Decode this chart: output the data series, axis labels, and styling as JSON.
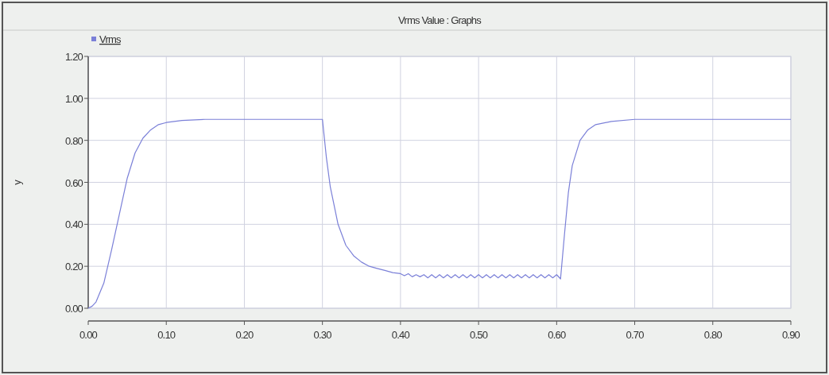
{
  "chart_data": {
    "type": "line",
    "title": "Vrms Value : Graphs",
    "ylabel": "y",
    "series": [
      {
        "name": "Vrms",
        "color": "#7b80d8",
        "x": [
          0,
          0.005,
          0.01,
          0.02,
          0.03,
          0.04,
          0.05,
          0.06,
          0.07,
          0.08,
          0.09,
          0.1,
          0.12,
          0.15,
          0.2,
          0.3,
          0.305,
          0.31,
          0.32,
          0.33,
          0.34,
          0.35,
          0.36,
          0.37,
          0.38,
          0.39,
          0.4,
          0.405,
          0.41,
          0.415,
          0.42,
          0.425,
          0.43,
          0.435,
          0.44,
          0.445,
          0.45,
          0.455,
          0.46,
          0.465,
          0.47,
          0.475,
          0.48,
          0.485,
          0.49,
          0.495,
          0.5,
          0.505,
          0.51,
          0.515,
          0.52,
          0.525,
          0.53,
          0.535,
          0.54,
          0.545,
          0.55,
          0.555,
          0.56,
          0.565,
          0.57,
          0.575,
          0.58,
          0.585,
          0.59,
          0.595,
          0.6,
          0.605,
          0.61,
          0.615,
          0.62,
          0.63,
          0.64,
          0.65,
          0.67,
          0.7,
          0.9
        ],
        "values": [
          0,
          0.01,
          0.03,
          0.12,
          0.28,
          0.45,
          0.62,
          0.74,
          0.81,
          0.85,
          0.875,
          0.885,
          0.895,
          0.9,
          0.9,
          0.9,
          0.72,
          0.58,
          0.4,
          0.3,
          0.25,
          0.22,
          0.2,
          0.19,
          0.18,
          0.17,
          0.165,
          0.155,
          0.165,
          0.15,
          0.16,
          0.15,
          0.16,
          0.145,
          0.16,
          0.145,
          0.16,
          0.145,
          0.16,
          0.145,
          0.16,
          0.145,
          0.16,
          0.145,
          0.16,
          0.145,
          0.16,
          0.145,
          0.16,
          0.145,
          0.16,
          0.145,
          0.16,
          0.145,
          0.16,
          0.145,
          0.16,
          0.145,
          0.16,
          0.145,
          0.16,
          0.145,
          0.16,
          0.145,
          0.16,
          0.145,
          0.16,
          0.14,
          0.35,
          0.55,
          0.68,
          0.8,
          0.85,
          0.875,
          0.89,
          0.9,
          0.9
        ]
      }
    ],
    "xlim": [
      0,
      0.9
    ],
    "xticks": [
      {
        "value": 0,
        "label": "0.00"
      },
      {
        "value": 0.1,
        "label": "0.10"
      },
      {
        "value": 0.2,
        "label": "0.20"
      },
      {
        "value": 0.3,
        "label": "0.30"
      },
      {
        "value": 0.4,
        "label": "0.40"
      },
      {
        "value": 0.5,
        "label": "0.50"
      },
      {
        "value": 0.6,
        "label": "0.60"
      },
      {
        "value": 0.7,
        "label": "0.70"
      },
      {
        "value": 0.8,
        "label": "0.80"
      },
      {
        "value": 0.9,
        "label": "0.90"
      }
    ],
    "ylim": [
      0,
      1.2
    ],
    "yticks": [
      {
        "value": 0,
        "label": "0.00"
      },
      {
        "value": 0.2,
        "label": "0.20"
      },
      {
        "value": 0.4,
        "label": "0.40"
      },
      {
        "value": 0.6,
        "label": "0.60"
      },
      {
        "value": 0.8,
        "label": "0.80"
      },
      {
        "value": 1,
        "label": "1.00"
      },
      {
        "value": 1.2,
        "label": "1.20"
      }
    ],
    "grid": true,
    "legend": "top left",
    "marker": "none",
    "line_style": "solid"
  }
}
